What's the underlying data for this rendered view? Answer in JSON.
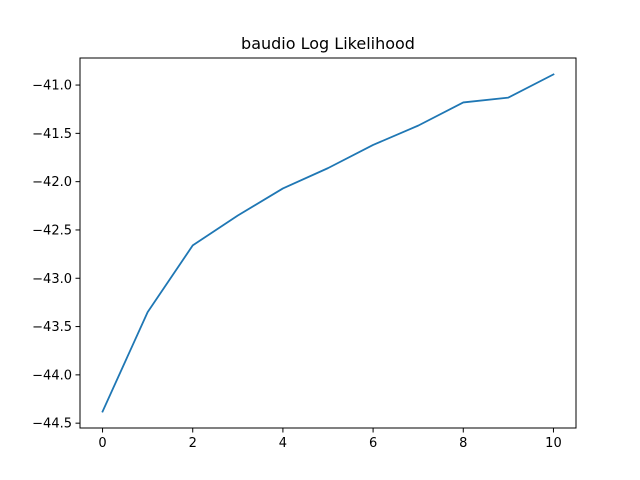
{
  "chart_data": {
    "type": "line",
    "title": "baudio Log Likelihood",
    "xlabel": "",
    "ylabel": "",
    "xlim": [
      -0.5,
      10.5
    ],
    "ylim": [
      -44.55,
      -40.72
    ],
    "xticks": [
      0,
      2,
      4,
      6,
      8,
      10
    ],
    "xtick_labels": [
      "0",
      "2",
      "4",
      "6",
      "8",
      "10"
    ],
    "yticks": [
      -44.5,
      -44.0,
      -43.5,
      -43.0,
      -42.5,
      -42.0,
      -41.5,
      -41.0
    ],
    "ytick_labels": [
      "−44.5",
      "−44.0",
      "−43.5",
      "−43.0",
      "−42.5",
      "−42.0",
      "−41.5",
      "−41.0"
    ],
    "grid": false,
    "x": [
      0,
      1,
      2,
      3,
      4,
      5,
      6,
      7,
      8,
      9,
      10
    ],
    "series": [
      {
        "color": "#1f77b4",
        "values": [
          -44.38,
          -43.35,
          -42.66,
          -42.35,
          -42.07,
          -41.86,
          -41.62,
          -41.42,
          -41.18,
          -41.13,
          -40.89
        ]
      }
    ]
  }
}
